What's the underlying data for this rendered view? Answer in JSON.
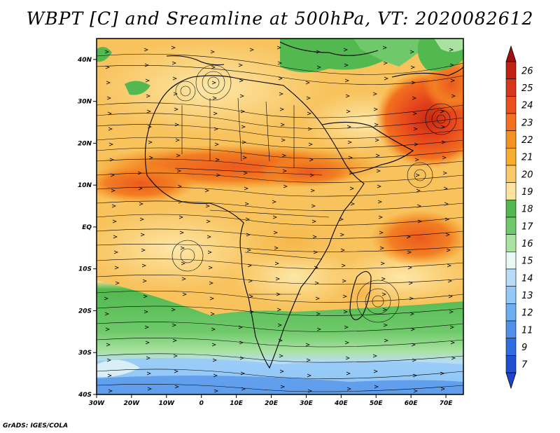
{
  "title": "WBPT [C] and Sreamline at 500hPa, VT: 2020082612",
  "footer": "GrADS: IGES/COLA",
  "axes": {
    "lat_labels": [
      "40N",
      "30N",
      "20N",
      "10N",
      "EQ",
      "10S",
      "20S",
      "30S",
      "40S"
    ],
    "lat_values": [
      40,
      30,
      20,
      10,
      0,
      -10,
      -20,
      -30,
      -40
    ],
    "lon_labels": [
      "30W",
      "20W",
      "10W",
      "0",
      "10E",
      "20E",
      "30E",
      "40E",
      "50E",
      "60E",
      "70E"
    ],
    "lon_values": [
      -30,
      -20,
      -10,
      0,
      10,
      20,
      30,
      40,
      50,
      60,
      70
    ],
    "lon_range": [
      -30,
      75
    ],
    "lat_range": [
      -40,
      45
    ]
  },
  "colorbar": {
    "labels": [
      "26",
      "25",
      "24",
      "23",
      "22",
      "21",
      "20",
      "19",
      "18",
      "17",
      "16",
      "15",
      "14",
      "13",
      "12",
      "11",
      "9",
      "7"
    ],
    "colors": [
      "#c01f12",
      "#d9341c",
      "#ec4f1e",
      "#f2701e",
      "#f59120",
      "#f8ad30",
      "#f9c867",
      "#fde39d",
      "#52b84f",
      "#6fc96a",
      "#a9e2a1",
      "#e8f8f4",
      "#b7dcfa",
      "#94c8f6",
      "#6eaef0",
      "#4e90ea",
      "#2f6ee0",
      "#1f50d2"
    ],
    "top_arrow_color": "#a01010",
    "bottom_arrow_color": "#1f44c8"
  }
}
